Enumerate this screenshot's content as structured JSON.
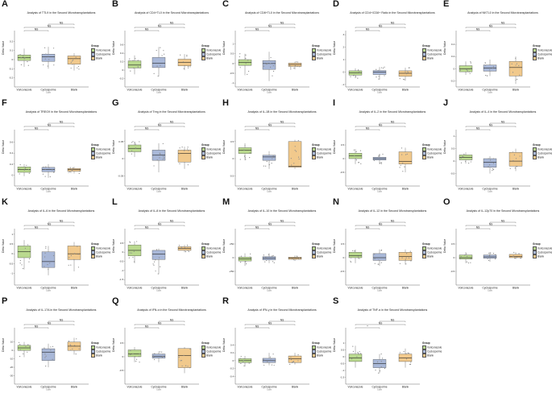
{
  "legend": {
    "title": "Group",
    "items": [
      {
        "label": "Voriconazole",
        "color": "#b9d98e"
      },
      {
        "label": "Cyclosporine",
        "color": "#a9b8d8"
      },
      {
        "label": "Blank",
        "color": "#f1c98c"
      }
    ]
  },
  "y_label": "Delta Value",
  "cyclosporine_note": "Cyclo",
  "chart_data": [
    {
      "panel": "A",
      "type": "box",
      "title": "Analysis of TTL9 in the Second Microtransplantations",
      "categories": [
        "Voriconazole",
        "Cyclosporine",
        "Blank"
      ],
      "ylim": [
        -0.3,
        0.3
      ],
      "yticks": [
        -0.2,
        -0.1,
        0.0,
        0.1,
        0.2
      ],
      "boxes": [
        [
          -0.08,
          -0.01,
          0.02,
          0.05,
          0.12
        ],
        [
          -0.1,
          -0.02,
          0.03,
          0.06,
          0.14
        ],
        [
          -0.12,
          -0.05,
          0.01,
          0.04,
          0.07
        ]
      ],
      "comparisons": [
        {
          "pair": [
            0,
            1
          ],
          "label": "NS"
        },
        {
          "pair": [
            0,
            2
          ],
          "label": "NS"
        },
        {
          "pair": [
            1,
            2
          ],
          "label": "NS"
        }
      ]
    },
    {
      "panel": "B",
      "type": "box",
      "title": "Analysis of CD4+TL0 in the Second Microtransplantations",
      "categories": [
        "Voriconazole",
        "Cyclosporine",
        "Blank"
      ],
      "ylim": [
        -0.4,
        0.9
      ],
      "yticks": [
        -0.2,
        0.0,
        0.2,
        0.4,
        0.6
      ],
      "boxes": [
        [
          -0.1,
          0.05,
          0.12,
          0.22,
          0.35
        ],
        [
          -0.15,
          0.06,
          0.16,
          0.3,
          0.55
        ],
        [
          0.0,
          0.1,
          0.18,
          0.26,
          0.38
        ]
      ],
      "comparisons": [
        {
          "pair": [
            0,
            1
          ],
          "label": "NS"
        },
        {
          "pair": [
            0,
            2
          ],
          "label": "NS"
        },
        {
          "pair": [
            1,
            2
          ],
          "label": "NS"
        }
      ]
    },
    {
      "panel": "C",
      "type": "box",
      "title": "Analysis of CD8+TL0 in the Second Microtransplantations",
      "categories": [
        "Voriconazole",
        "Cyclosporine",
        "Blank"
      ],
      "ylim": [
        -1.2,
        1.6
      ],
      "yticks": [
        -1.0,
        -0.5,
        0.0,
        0.5,
        1.0
      ],
      "boxes": [
        [
          -0.6,
          -0.1,
          0.05,
          0.2,
          0.5
        ],
        [
          -0.9,
          -0.3,
          0.0,
          0.15,
          0.6
        ],
        [
          -0.3,
          -0.15,
          -0.05,
          0.02,
          0.1
        ]
      ],
      "comparisons": [
        {
          "pair": [
            0,
            1
          ],
          "label": "NS"
        },
        {
          "pair": [
            0,
            2
          ],
          "label": "NS"
        },
        {
          "pair": [
            1,
            2
          ],
          "label": "NS"
        }
      ]
    },
    {
      "panel": "D",
      "type": "box",
      "title": "Analysis of CD4+/CD8+ Ratio in the Second Microtransplantations",
      "categories": [
        "Voriconazole",
        "Cyclosporine",
        "Blank"
      ],
      "ylim": [
        -1.2,
        3.2
      ],
      "yticks": [
        -1,
        0,
        1,
        2,
        3
      ],
      "boxes": [
        [
          -0.5,
          -0.25,
          -0.05,
          0.1,
          0.3
        ],
        [
          -0.6,
          -0.2,
          0.0,
          0.12,
          0.4
        ],
        [
          -0.7,
          -0.35,
          -0.1,
          0.1,
          0.35
        ]
      ],
      "comparisons": [
        {
          "pair": [
            0,
            1
          ],
          "label": "NS"
        },
        {
          "pair": [
            0,
            2
          ],
          "label": "NS"
        },
        {
          "pair": [
            1,
            2
          ],
          "label": "NS"
        }
      ]
    },
    {
      "panel": "E",
      "type": "box",
      "title": "Analysis of NKTL0 in the Second Microtransplantations",
      "categories": [
        "Voriconazole",
        "Cyclosporine",
        "Blank"
      ],
      "ylim": [
        -0.3,
        0.6
      ],
      "yticks": [
        -0.2,
        0.0,
        0.2,
        0.4
      ],
      "boxes": [
        [
          -0.1,
          -0.05,
          0.0,
          0.05,
          0.12
        ],
        [
          -0.12,
          -0.04,
          0.01,
          0.06,
          0.15
        ],
        [
          -0.25,
          -0.12,
          0.02,
          0.12,
          0.2
        ]
      ],
      "comparisons": [
        {
          "pair": [
            0,
            1
          ],
          "label": "NS"
        },
        {
          "pair": [
            0,
            2
          ],
          "label": "NS"
        },
        {
          "pair": [
            1,
            2
          ],
          "label": "NS"
        }
      ]
    },
    {
      "panel": "F",
      "type": "box",
      "title": "Analysis of TREG9 in the Second Microtransplantations",
      "categories": [
        "Voriconazole",
        "Cyclosporine",
        "Blank"
      ],
      "ylim": [
        -0.2,
        0.8
      ],
      "yticks": [
        0.0,
        0.2,
        0.4,
        0.6
      ],
      "boxes": [
        [
          -0.02,
          0.05,
          0.1,
          0.15,
          0.2
        ],
        [
          -0.05,
          0.06,
          0.1,
          0.14,
          0.2
        ],
        [
          0.03,
          0.07,
          0.1,
          0.12,
          0.15
        ]
      ],
      "comparisons": [
        {
          "pair": [
            0,
            1
          ],
          "label": "NS"
        },
        {
          "pair": [
            0,
            2
          ],
          "label": "NS"
        },
        {
          "pair": [
            1,
            2
          ],
          "label": "NS"
        }
      ]
    },
    {
      "panel": "G",
      "type": "box",
      "title": "Analysis of Treg in the Second Microtransplantations",
      "categories": [
        "Voriconazole",
        "Cyclosporine",
        "Blank"
      ],
      "ylim": [
        -0.08,
        0.08
      ],
      "yticks": [
        -0.05,
        0.0,
        0.05
      ],
      "boxes": [
        [
          0.005,
          0.02,
          0.03,
          0.04,
          0.05
        ],
        [
          -0.04,
          -0.005,
          0.01,
          0.025,
          0.045
        ],
        [
          -0.03,
          -0.01,
          0.015,
          0.025,
          0.035
        ]
      ],
      "comparisons": [
        {
          "pair": [
            0,
            1
          ],
          "label": "NS"
        },
        {
          "pair": [
            0,
            2
          ],
          "label": "NS"
        },
        {
          "pair": [
            1,
            2
          ],
          "label": "NS"
        }
      ]
    },
    {
      "panel": "H",
      "type": "box",
      "title": "Analysis of IL-1B in the Second Microtransplantations",
      "categories": [
        "Voriconazole",
        "Cyclosporine",
        "Blank"
      ],
      "ylim": [
        -0.8,
        0.8
      ],
      "yticks": [
        -0.5,
        0.0,
        0.5
      ],
      "boxes": [
        [
          -0.05,
          0.15,
          0.25,
          0.32,
          0.45
        ],
        [
          -0.3,
          -0.05,
          0.05,
          0.1,
          0.22
        ],
        [
          -0.3,
          -0.25,
          -0.22,
          0.5,
          0.55
        ]
      ],
      "comparisons": [
        {
          "pair": [
            0,
            1
          ],
          "label": "NS"
        },
        {
          "pair": [
            0,
            2
          ],
          "label": "NS"
        },
        {
          "pair": [
            1,
            2
          ],
          "label": "NS"
        }
      ]
    },
    {
      "panel": "I",
      "type": "box",
      "title": "Analysis of IL-2 in the Second Microtransplantations",
      "categories": [
        "Voriconazole",
        "Cyclosporine",
        "Blank"
      ],
      "ylim": [
        -1.0,
        1.0
      ],
      "yticks": [
        -0.5,
        0.0,
        0.5
      ],
      "boxes": [
        [
          -0.2,
          0.0,
          0.1,
          0.2,
          0.35
        ],
        [
          -0.2,
          -0.05,
          0.0,
          0.05,
          0.18
        ],
        [
          -0.5,
          -0.2,
          -0.1,
          0.25,
          0.4
        ]
      ],
      "comparisons": [
        {
          "pair": [
            0,
            1
          ],
          "label": "NS"
        },
        {
          "pair": [
            0,
            2
          ],
          "label": "NS"
        },
        {
          "pair": [
            1,
            2
          ],
          "label": "NS"
        }
      ]
    },
    {
      "panel": "J",
      "type": "box",
      "title": "Analysis of IL-4 in the Second Microtransplantations",
      "categories": [
        "Voriconazole",
        "Cyclosporine",
        "Blank"
      ],
      "ylim": [
        -1.0,
        1.2
      ],
      "yticks": [
        -0.5,
        0.0,
        0.5,
        1.0
      ],
      "boxes": [
        [
          -0.1,
          0.05,
          0.15,
          0.25,
          0.35
        ],
        [
          -0.5,
          -0.25,
          -0.05,
          0.1,
          0.2
        ],
        [
          -0.4,
          -0.2,
          0.0,
          0.35,
          0.5
        ]
      ],
      "comparisons": [
        {
          "pair": [
            0,
            1
          ],
          "label": "NS"
        },
        {
          "pair": [
            0,
            2
          ],
          "label": "NS"
        },
        {
          "pair": [
            1,
            2
          ],
          "label": "NS"
        }
      ]
    },
    {
      "panel": "K",
      "type": "box",
      "title": "Analysis of IL-6 in the Second Microtransplantations",
      "categories": [
        "Voriconazole",
        "Cyclosporine",
        "Blank"
      ],
      "ylim": [
        -1.6,
        1.2
      ],
      "yticks": [
        -1.0,
        -0.5,
        0.0,
        0.5,
        1.0
      ],
      "boxes": [
        [
          -0.8,
          -0.2,
          0.1,
          0.4,
          0.7
        ],
        [
          -1.1,
          -0.7,
          -0.4,
          0.1,
          0.4
        ],
        [
          -0.9,
          -0.3,
          0.0,
          0.4,
          0.6
        ]
      ],
      "comparisons": [
        {
          "pair": [
            0,
            1
          ],
          "label": "NS"
        },
        {
          "pair": [
            0,
            2
          ],
          "label": "NS"
        },
        {
          "pair": [
            1,
            2
          ],
          "label": "NS"
        }
      ]
    },
    {
      "panel": "L",
      "type": "box",
      "title": "Analysis of IL-8 in the Second Microtransplantations",
      "categories": [
        "Voriconazole",
        "Cyclosporine",
        "Blank"
      ],
      "ylim": [
        -1.8,
        1.2
      ],
      "yticks": [
        -1.5,
        -1.0,
        -0.5,
        0.0,
        0.5
      ],
      "boxes": [
        [
          -0.6,
          -0.2,
          0.1,
          0.4,
          0.6
        ],
        [
          -1.2,
          -0.4,
          -0.1,
          0.1,
          0.2
        ],
        [
          0.0,
          0.1,
          0.2,
          0.3,
          0.4
        ]
      ],
      "comparisons": [
        {
          "pair": [
            0,
            1
          ],
          "label": "NS"
        },
        {
          "pair": [
            0,
            2
          ],
          "label": "NS"
        },
        {
          "pair": [
            1,
            2
          ],
          "label": "NS"
        }
      ]
    },
    {
      "panel": "M",
      "type": "box",
      "title": "Analysis of IL-10 in the Second Microtransplantations",
      "categories": [
        "Voriconazole",
        "Cyclosporine",
        "Blank"
      ],
      "ylim": [
        -500,
        500
      ],
      "yticks": [
        -250,
        0,
        250
      ],
      "boxes": [
        [
          -150,
          -60,
          -20,
          10,
          80
        ],
        [
          -100,
          -40,
          -10,
          20,
          80
        ],
        [
          -60,
          -30,
          -10,
          10,
          40
        ]
      ],
      "comparisons": [
        {
          "pair": [
            0,
            1
          ],
          "label": "NS"
        },
        {
          "pair": [
            0,
            2
          ],
          "label": "NS"
        },
        {
          "pair": [
            1,
            2
          ],
          "label": "NS"
        }
      ]
    },
    {
      "panel": "N",
      "type": "box",
      "title": "Analysis of IL-12 in the Second Microtransplantations",
      "categories": [
        "Voriconazole",
        "Cyclosporine",
        "Blank"
      ],
      "ylim": [
        -1.0,
        1.0
      ],
      "yticks": [
        -0.5,
        0.0,
        0.5
      ],
      "boxes": [
        [
          -0.2,
          0.0,
          0.08,
          0.2,
          0.3
        ],
        [
          -0.3,
          -0.1,
          0.0,
          0.15,
          0.3
        ],
        [
          -0.25,
          -0.1,
          0.05,
          0.2,
          0.3
        ]
      ],
      "comparisons": [
        {
          "pair": [
            0,
            1
          ],
          "label": "NS"
        },
        {
          "pair": [
            0,
            2
          ],
          "label": "NS"
        },
        {
          "pair": [
            1,
            2
          ],
          "label": "NS"
        }
      ]
    },
    {
      "panel": "O",
      "type": "box",
      "title": "Analysis of IL-12p70 in the Second Microtransplantations",
      "categories": [
        "Voriconazole",
        "Cyclosporine",
        "Blank"
      ],
      "ylim": [
        -1.0,
        1.0
      ],
      "yticks": [
        -0.5,
        0.0,
        0.5
      ],
      "boxes": [
        [
          -0.2,
          -0.05,
          0.0,
          0.1,
          0.2
        ],
        [
          -0.15,
          -0.02,
          0.03,
          0.1,
          0.2
        ],
        [
          -0.05,
          0.0,
          0.05,
          0.12,
          0.2
        ]
      ],
      "comparisons": [
        {
          "pair": [
            0,
            1
          ],
          "label": "NS"
        },
        {
          "pair": [
            0,
            2
          ],
          "label": "NS"
        },
        {
          "pair": [
            1,
            2
          ],
          "label": "NS"
        }
      ]
    },
    {
      "panel": "P",
      "type": "box",
      "title": "Analysis of IL-17A in the Second Microtransplantations",
      "categories": [
        "Voriconazole",
        "Cyclosporine",
        "Blank"
      ],
      "ylim": [
        -40,
        25
      ],
      "yticks": [
        -30,
        -20,
        -10,
        0,
        10
      ],
      "boxes": [
        [
          -8,
          0,
          3,
          6,
          10
        ],
        [
          -20,
          -12,
          -2,
          2,
          8
        ],
        [
          -5,
          0,
          5,
          10,
          15
        ]
      ],
      "comparisons": [
        {
          "pair": [
            0,
            1
          ],
          "label": "NS"
        },
        {
          "pair": [
            0,
            2
          ],
          "label": "NS"
        },
        {
          "pair": [
            1,
            2
          ],
          "label": "NS"
        }
      ]
    },
    {
      "panel": "Q",
      "type": "box",
      "title": "Analysis of IFN-α in the Second Microtransplantations",
      "categories": [
        "Voriconazole",
        "Cyclosporine",
        "Blank"
      ],
      "ylim": [
        -1.0,
        1.0
      ],
      "yticks": [
        -0.5,
        0.0,
        0.5
      ],
      "boxes": [
        [
          -0.2,
          0.0,
          0.1,
          0.25,
          0.35
        ],
        [
          -0.2,
          -0.05,
          0.02,
          0.1,
          0.2
        ],
        [
          -0.6,
          -0.4,
          0.05,
          0.3,
          0.35
        ]
      ],
      "comparisons": [
        {
          "pair": [
            0,
            1
          ],
          "label": "NS"
        },
        {
          "pair": [
            0,
            2
          ],
          "label": "NS"
        },
        {
          "pair": [
            1,
            2
          ],
          "label": "NS"
        }
      ]
    },
    {
      "panel": "R",
      "type": "box",
      "title": "Analysis of IFN-γ in the Second Microtransplantations",
      "categories": [
        "Voriconazole",
        "Cyclosporine",
        "Blank"
      ],
      "ylim": [
        -0.6,
        0.8
      ],
      "yticks": [
        -0.4,
        -0.2,
        0.0,
        0.2,
        0.4
      ],
      "boxes": [
        [
          -0.15,
          -0.05,
          0.0,
          0.05,
          0.12
        ],
        [
          -0.12,
          -0.05,
          0.0,
          0.06,
          0.2
        ],
        [
          -0.1,
          -0.05,
          0.05,
          0.12,
          0.2
        ]
      ],
      "comparisons": [
        {
          "pair": [
            0,
            1
          ],
          "label": "NS"
        },
        {
          "pair": [
            0,
            2
          ],
          "label": "NS"
        },
        {
          "pair": [
            1,
            2
          ],
          "label": "NS"
        }
      ]
    },
    {
      "panel": "S",
      "type": "box",
      "title": "Analysis of TNF-α in the Second Microtransplantations",
      "categories": [
        "Voriconazole",
        "Cyclosporine",
        "Blank"
      ],
      "ylim": [
        -2.0,
        2.0
      ],
      "yticks": [
        -1.5,
        -1.0,
        -0.5,
        0.0,
        0.5,
        1.0
      ],
      "boxes": [
        [
          -0.8,
          -0.35,
          -0.1,
          0.2,
          0.8
        ],
        [
          -1.2,
          -0.8,
          -0.5,
          -0.2,
          0.2
        ],
        [
          -0.8,
          -0.35,
          -0.1,
          0.2,
          0.6
        ]
      ],
      "comparisons": [
        {
          "pair": [
            0,
            1
          ],
          "label": "*"
        },
        {
          "pair": [
            0,
            2
          ],
          "label": "NS"
        },
        {
          "pair": [
            1,
            2
          ],
          "label": "NS"
        }
      ]
    }
  ]
}
